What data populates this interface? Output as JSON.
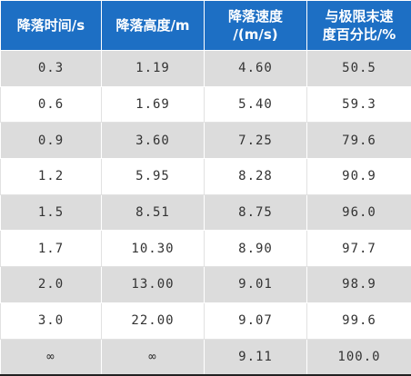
{
  "table": {
    "headers": [
      {
        "lines": [
          "降落时间/s"
        ]
      },
      {
        "lines": [
          "降落高度/m"
        ]
      },
      {
        "lines": [
          "降落速度",
          "/(m/s)"
        ]
      },
      {
        "lines": [
          "与极限末速",
          "度百分比/%"
        ]
      }
    ],
    "rows": [
      [
        "0.3",
        "1.19",
        "4.60",
        "50.5"
      ],
      [
        "0.6",
        "1.69",
        "5.40",
        "59.3"
      ],
      [
        "0.9",
        "3.60",
        "7.25",
        "79.6"
      ],
      [
        "1.2",
        "5.95",
        "8.28",
        "90.9"
      ],
      [
        "1.5",
        "8.51",
        "8.75",
        "96.0"
      ],
      [
        "1.7",
        "10.30",
        "8.90",
        "97.7"
      ],
      [
        "2.0",
        "13.00",
        "9.01",
        "98.9"
      ],
      [
        "3.0",
        "22.00",
        "9.07",
        "99.6"
      ],
      [
        "∞",
        "∞",
        "9.11",
        "100.0"
      ]
    ]
  }
}
